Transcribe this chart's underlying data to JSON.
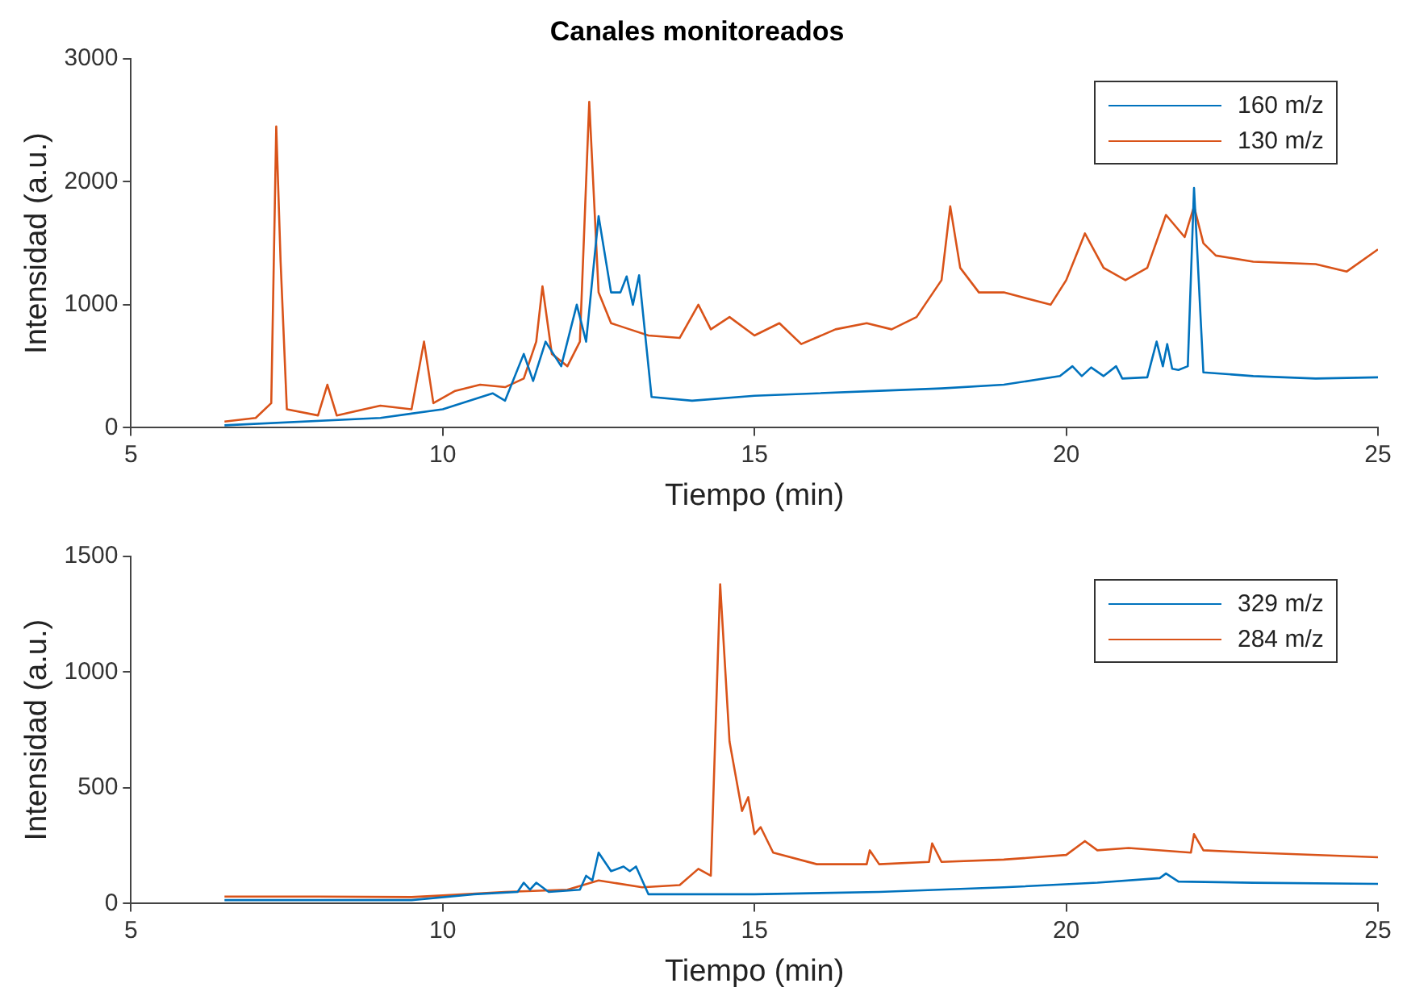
{
  "chart_data": [
    {
      "type": "line",
      "title": "Canales monitoreados",
      "xlabel": "Tiempo (min)",
      "ylabel": "Intensidad (a.u.)",
      "xlim": [
        5,
        25
      ],
      "xticks": [
        5,
        10,
        15,
        20,
        25
      ],
      "ylim": [
        0,
        3000
      ],
      "yticks": [
        0,
        1000,
        2000,
        3000
      ],
      "grid": false,
      "legend": "top right",
      "marker": "none",
      "line_style": "solid",
      "series": [
        {
          "name": "160 m/z",
          "color": "#0072bd",
          "x": [
            6.5,
            9.0,
            10.0,
            10.8,
            11.0,
            11.3,
            11.45,
            11.65,
            11.9,
            12.15,
            12.3,
            12.5,
            12.7,
            12.85,
            12.95,
            13.05,
            13.15,
            13.35,
            14.0,
            15.0,
            16.0,
            17.0,
            18.0,
            19.0,
            19.9,
            20.1,
            20.25,
            20.4,
            20.6,
            20.8,
            20.9,
            21.3,
            21.45,
            21.55,
            21.62,
            21.7,
            21.8,
            21.95,
            22.05,
            22.2,
            23.0,
            24.0,
            25.0
          ],
          "values": [
            20,
            80,
            150,
            280,
            220,
            600,
            380,
            700,
            500,
            1000,
            700,
            1720,
            1100,
            1100,
            1230,
            1000,
            1240,
            250,
            220,
            260,
            280,
            300,
            320,
            350,
            420,
            500,
            420,
            490,
            420,
            500,
            400,
            410,
            700,
            500,
            680,
            480,
            470,
            500,
            1950,
            450,
            420,
            400,
            410
          ]
        },
        {
          "name": "130 m/z",
          "color": "#d95319",
          "x": [
            6.5,
            7.0,
            7.25,
            7.33,
            7.4,
            7.5,
            8.0,
            8.15,
            8.3,
            9.0,
            9.5,
            9.7,
            9.85,
            10.2,
            10.6,
            11.0,
            11.3,
            11.5,
            11.6,
            11.75,
            12.0,
            12.2,
            12.35,
            12.5,
            12.7,
            13.0,
            13.3,
            13.8,
            14.1,
            14.3,
            14.6,
            15.0,
            15.4,
            15.75,
            16.3,
            16.8,
            17.2,
            17.6,
            18.0,
            18.14,
            18.3,
            18.6,
            19.0,
            19.75,
            20.0,
            20.3,
            20.6,
            20.95,
            21.3,
            21.6,
            21.9,
            22.05,
            22.2,
            22.4,
            23.0,
            24.0,
            24.5,
            25.0
          ],
          "values": [
            50,
            80,
            200,
            2450,
            1350,
            150,
            100,
            350,
            100,
            180,
            150,
            700,
            200,
            300,
            350,
            330,
            400,
            700,
            1150,
            600,
            500,
            700,
            2650,
            1100,
            850,
            800,
            750,
            730,
            1000,
            800,
            900,
            750,
            850,
            680,
            800,
            850,
            800,
            900,
            1200,
            1800,
            1300,
            1100,
            1100,
            1000,
            1200,
            1580,
            1300,
            1200,
            1300,
            1730,
            1550,
            1800,
            1500,
            1400,
            1350,
            1330,
            1270,
            1450
          ]
        }
      ]
    },
    {
      "type": "line",
      "xlabel": "Tiempo (min)",
      "ylabel": "Intensidad (a.u.)",
      "xlim": [
        5,
        25
      ],
      "xticks": [
        5,
        10,
        15,
        20,
        25
      ],
      "ylim": [
        0,
        1500
      ],
      "yticks": [
        0,
        500,
        1000,
        1500
      ],
      "grid": false,
      "legend": "top right",
      "marker": "none",
      "line_style": "solid",
      "series": [
        {
          "name": "329 m/z",
          "color": "#0072bd",
          "x": [
            6.5,
            9.5,
            10.5,
            11.2,
            11.3,
            11.4,
            11.5,
            11.7,
            12.2,
            12.3,
            12.4,
            12.5,
            12.7,
            12.9,
            13.0,
            13.1,
            13.3,
            15.0,
            17.0,
            19.0,
            20.5,
            21.5,
            21.6,
            21.8,
            23.0,
            25.0
          ],
          "values": [
            15,
            15,
            40,
            50,
            90,
            60,
            90,
            50,
            60,
            120,
            100,
            220,
            140,
            160,
            140,
            160,
            40,
            40,
            50,
            70,
            90,
            110,
            130,
            95,
            90,
            85
          ]
        },
        {
          "name": "284 m/z",
          "color": "#d95319",
          "x": [
            6.5,
            8.0,
            9.5,
            10.0,
            11.0,
            12.0,
            12.5,
            13.2,
            13.8,
            14.1,
            14.3,
            14.45,
            14.6,
            14.8,
            14.9,
            15.0,
            15.1,
            15.3,
            16.0,
            16.8,
            16.85,
            17.0,
            17.8,
            17.85,
            18.0,
            19.0,
            20.0,
            20.3,
            20.5,
            21.0,
            22.0,
            22.05,
            22.2,
            23.0,
            25.0
          ],
          "values": [
            30,
            30,
            28,
            35,
            50,
            60,
            100,
            70,
            80,
            150,
            120,
            1380,
            700,
            400,
            460,
            300,
            330,
            220,
            170,
            170,
            230,
            170,
            180,
            260,
            180,
            190,
            210,
            270,
            230,
            240,
            220,
            300,
            230,
            220,
            200
          ]
        }
      ]
    }
  ]
}
